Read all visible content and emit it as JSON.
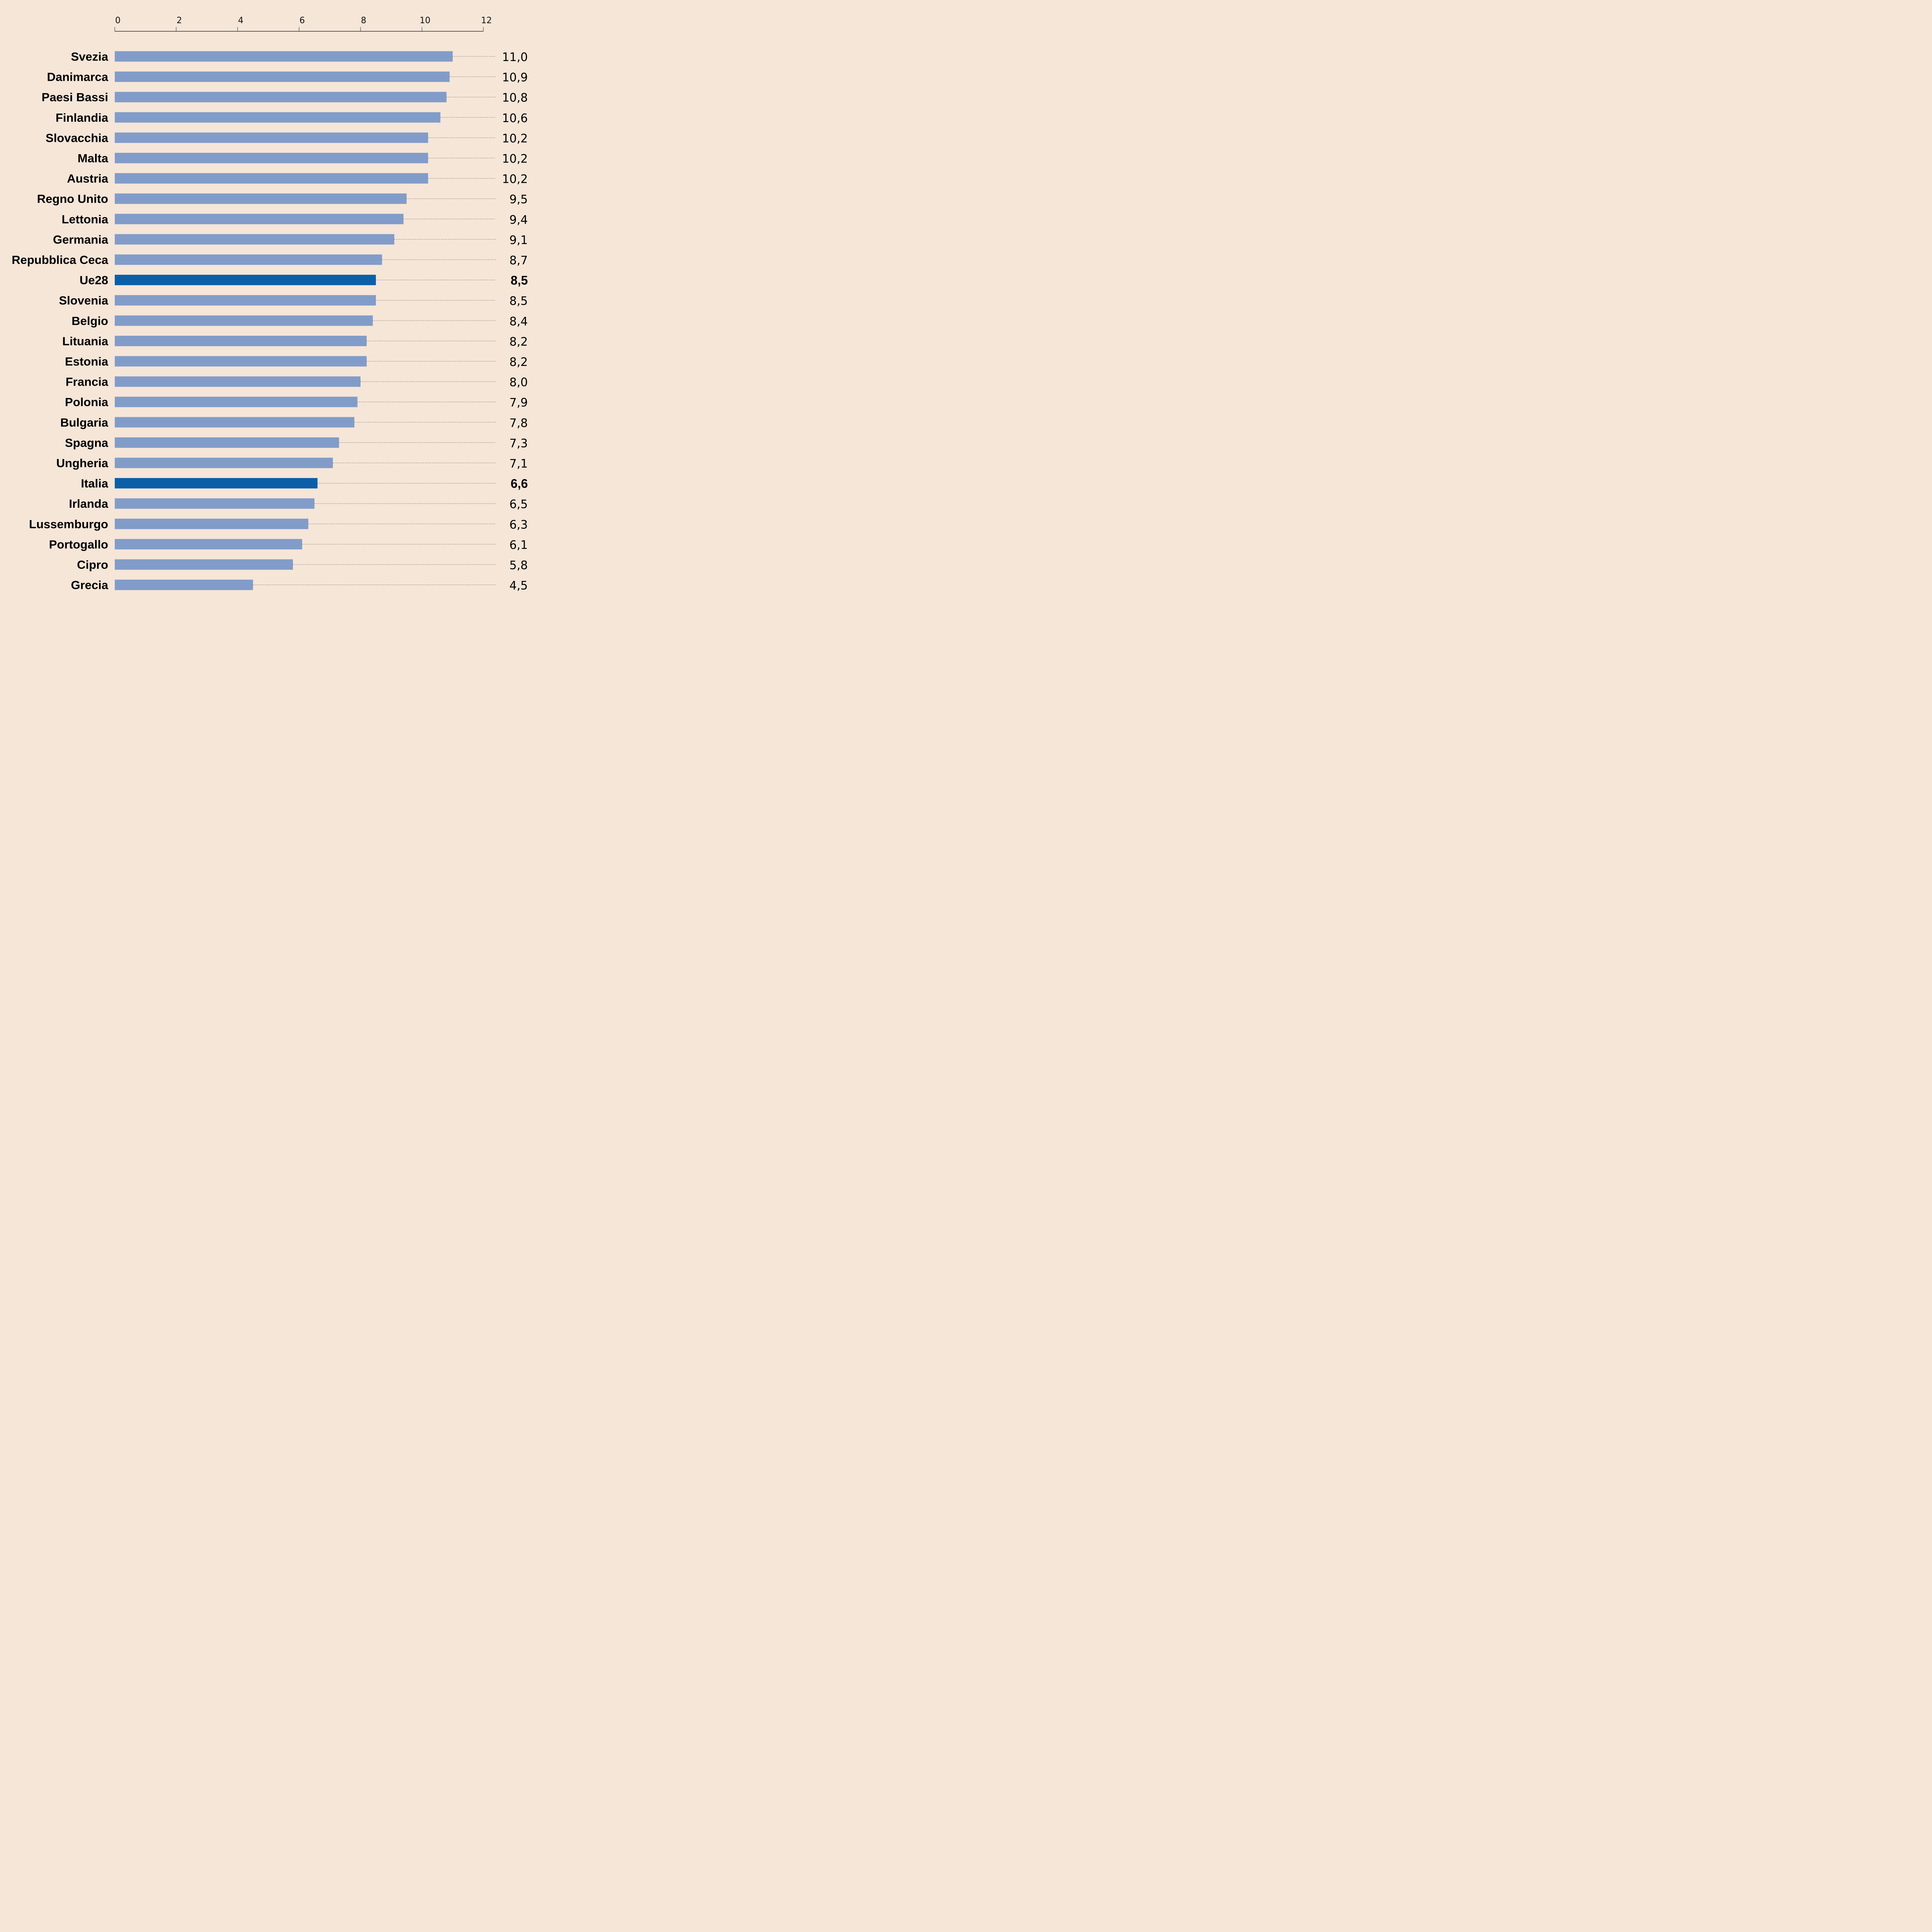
{
  "chart_data": {
    "type": "bar",
    "orientation": "horizontal",
    "title": "",
    "xlabel": "",
    "ylabel": "",
    "xlim": [
      0,
      12
    ],
    "x_ticks": [
      "0",
      "2",
      "4",
      "6",
      "8",
      "10",
      "12"
    ],
    "x_tick_values": [
      0,
      2,
      4,
      6,
      8,
      10,
      12
    ],
    "axis_position": "top",
    "grid": false,
    "decimal_separator": ",",
    "colors": {
      "background": "#F5E6D8",
      "bar": "#829CC9",
      "highlight_bar": "#0A5FA8",
      "text": "#000000",
      "leader_line": "#333333"
    },
    "categories": [
      "Svezia",
      "Danimarca",
      "Paesi Bassi",
      "Finlandia",
      "Slovacchia",
      "Malta",
      "Austria",
      "Regno Unito",
      "Lettonia",
      "Germania",
      "Repubblica Ceca",
      "Ue28",
      "Slovenia",
      "Belgio",
      "Lituania",
      "Estonia",
      "Francia",
      "Polonia",
      "Bulgaria",
      "Spagna",
      "Ungheria",
      "Italia",
      "Irlanda",
      "Lussemburgo",
      "Portogallo",
      "Cipro",
      "Grecia"
    ],
    "values": [
      11.0,
      10.9,
      10.8,
      10.6,
      10.2,
      10.2,
      10.2,
      9.5,
      9.4,
      9.1,
      8.7,
      8.5,
      8.5,
      8.4,
      8.2,
      8.2,
      8.0,
      7.9,
      7.8,
      7.3,
      7.1,
      6.6,
      6.5,
      6.3,
      6.1,
      5.8,
      4.5
    ],
    "value_labels": [
      "11,0",
      "10,9",
      "10,8",
      "10,6",
      "10,2",
      "10,2",
      "10,2",
      "9,5",
      "9,4",
      "9,1",
      "8,7",
      "8,5",
      "8,5",
      "8,4",
      "8,2",
      "8,2",
      "8,0",
      "7,9",
      "7,8",
      "7,3",
      "7,1",
      "6,6",
      "6,5",
      "6,3",
      "6,1",
      "5,8",
      "4,5"
    ],
    "highlighted": [
      "Ue28",
      "Italia"
    ]
  }
}
